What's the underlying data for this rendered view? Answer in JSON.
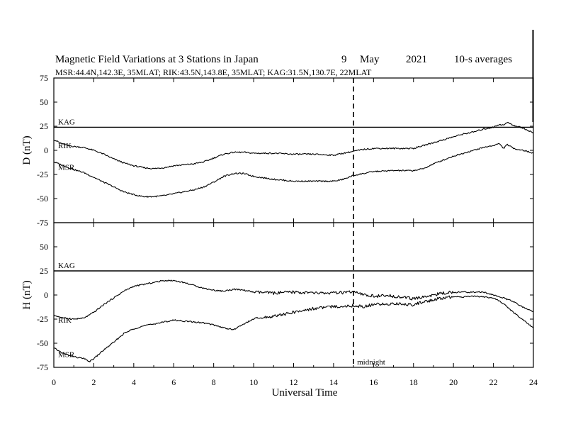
{
  "chart_data": {
    "type": "line",
    "title": {
      "main": "Magnetic Field Variations at 3 Stations in Japan",
      "day": "9",
      "month": "May",
      "year": "2021",
      "averaging": "10-s averages"
    },
    "subtitle": "MSR:44.4N,142.3E, 35MLAT;  RIK:43.5N,143.8E, 35MLAT;  KAG:31.5N,130.7E, 22MLAT",
    "xlabel": "Universal Time",
    "xlim": [
      0,
      24
    ],
    "xticks": [
      "0",
      "2",
      "4",
      "6",
      "8",
      "10",
      "12",
      "14",
      "16",
      "18",
      "20",
      "22",
      "24"
    ],
    "grid": false,
    "annotations": {
      "midnight_label": "midnight",
      "midnight_ut": 15
    },
    "panels": [
      {
        "component": "D",
        "ylabel": "D (nT)",
        "ylim": [
          -75,
          75
        ],
        "yticks": [
          "75",
          "50",
          "25",
          "0",
          "-25",
          "-50",
          "-75"
        ],
        "series": [
          {
            "name": "KAG",
            "x": [
              0,
              24
            ],
            "y": [
              24,
              24
            ]
          },
          {
            "name": "RIK",
            "x": [
              0,
              0.5,
              1,
              1.5,
              2,
              2.5,
              3,
              3.5,
              4,
              4.5,
              5,
              5.5,
              6,
              6.5,
              7,
              7.5,
              8,
              8.5,
              9,
              9.5,
              10,
              11,
              12,
              13,
              14,
              14.5,
              15,
              15.5,
              16,
              17,
              18,
              18.5,
              19,
              19.5,
              20,
              20.5,
              21,
              21.5,
              22,
              22.3,
              22.5,
              22.7,
              23,
              23.5,
              24
            ],
            "y": [
              11,
              6,
              4,
              3,
              0,
              -4,
              -9,
              -13,
              -16,
              -18,
              -19,
              -18,
              -16,
              -15,
              -14,
              -12,
              -8,
              -4,
              -2,
              -2,
              -3,
              -3,
              -4,
              -4,
              -5,
              -3,
              -1,
              1,
              2,
              2,
              2,
              5,
              8,
              11,
              14,
              17,
              19,
              22,
              24,
              27,
              26,
              29,
              26,
              23,
              18
            ]
          },
          {
            "name": "MSR",
            "x": [
              0,
              0.5,
              1,
              1.5,
              2,
              2.5,
              3,
              3.5,
              4,
              4.5,
              5,
              5.5,
              6,
              6.5,
              7,
              7.5,
              8,
              8.5,
              9,
              9.5,
              10,
              11,
              12,
              13,
              14,
              14.5,
              15,
              15.5,
              16,
              17,
              18,
              18.5,
              19,
              19.5,
              20,
              20.5,
              21,
              21.5,
              22,
              22.3,
              22.5,
              22.7,
              23,
              23.5,
              24
            ],
            "y": [
              -12,
              -16,
              -20,
              -23,
              -28,
              -33,
              -38,
              -43,
              -46,
              -48,
              -48,
              -47,
              -45,
              -43,
              -41,
              -38,
              -33,
              -27,
              -24,
              -24,
              -27,
              -30,
              -32,
              -32,
              -32,
              -30,
              -26,
              -24,
              -22,
              -21,
              -21,
              -19,
              -14,
              -10,
              -6,
              -3,
              0,
              3,
              5,
              7,
              2,
              6,
              2,
              0,
              -3
            ]
          }
        ]
      },
      {
        "component": "H",
        "ylabel": "H (nT)",
        "ylim": [
          -75,
          75
        ],
        "yticks": [
          "75",
          "50",
          "25",
          "0",
          "-25",
          "-50",
          "-75"
        ],
        "series": [
          {
            "name": "KAG",
            "x": [
              0,
              24
            ],
            "y": [
              25,
              25
            ]
          },
          {
            "name": "RIK",
            "x": [
              0,
              0.5,
              1,
              1.5,
              2,
              2.5,
              3,
              3.5,
              4,
              4.5,
              5,
              5.5,
              6,
              6.5,
              7,
              7.5,
              8,
              8.5,
              9,
              9.5,
              10,
              11,
              12,
              13,
              14,
              15,
              15.5,
              16,
              17,
              18,
              18.5,
              19,
              19.5,
              20,
              20.5,
              21,
              21.5,
              22,
              22.5,
              23,
              23.5,
              24
            ],
            "y": [
              -21,
              -24,
              -25,
              -24,
              -18,
              -10,
              -3,
              4,
              9,
              11,
              13,
              15,
              15,
              13,
              10,
              7,
              5,
              4,
              6,
              5,
              3,
              2,
              3,
              2,
              2,
              3,
              0,
              -1,
              -1,
              -4,
              -2,
              0,
              2,
              3,
              3,
              3,
              3,
              0,
              -3,
              -7,
              -13,
              -17
            ]
          },
          {
            "name": "MSR",
            "x": [
              0,
              0.5,
              1,
              1.5,
              1.8,
              2,
              2.5,
              3,
              3.5,
              4,
              4.5,
              5,
              5.5,
              6,
              6.5,
              7,
              7.5,
              8,
              8.5,
              9,
              9.5,
              10,
              11,
              12,
              13,
              14,
              15,
              15.5,
              16,
              17,
              18,
              18.5,
              19,
              19.5,
              20,
              20.5,
              21,
              21.5,
              22,
              22.5,
              23,
              23.5,
              24
            ],
            "y": [
              -55,
              -61,
              -64,
              -66,
              -69,
              -66,
              -57,
              -49,
              -40,
              -35,
              -32,
              -30,
              -28,
              -26,
              -27,
              -28,
              -29,
              -31,
              -34,
              -36,
              -30,
              -25,
              -22,
              -18,
              -14,
              -12,
              -11,
              -12,
              -10,
              -9,
              -10,
              -7,
              -5,
              -3,
              -2,
              -2,
              -1,
              -2,
              -3,
              -9,
              -18,
              -26,
              -34
            ]
          }
        ]
      }
    ]
  }
}
